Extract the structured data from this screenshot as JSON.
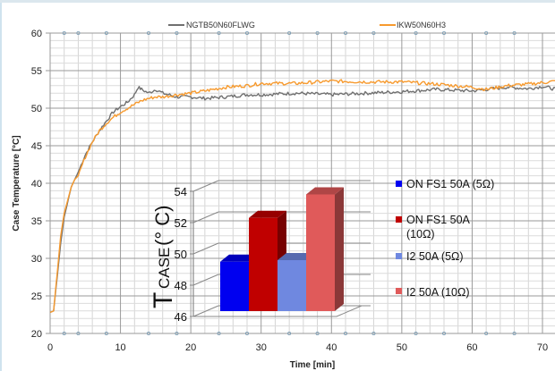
{
  "chart_data": [
    {
      "type": "line",
      "title": "",
      "xlabel": "Time [min]",
      "ylabel": "Case Temperature [°C]",
      "xlim": [
        0,
        72
      ],
      "ylim": [
        20,
        60
      ],
      "xticks": [
        0,
        10,
        20,
        30,
        40,
        50,
        60,
        70
      ],
      "yticks": [
        20,
        25,
        30,
        35,
        40,
        45,
        50,
        55,
        60
      ],
      "grid": true,
      "legend_position": "top",
      "series": [
        {
          "name": "NGTB50N60FLWG",
          "color": "#707070",
          "x": [
            0,
            0.5,
            1,
            1.5,
            2,
            3,
            4,
            5,
            6,
            7,
            8,
            9,
            10,
            11,
            12,
            12.5,
            13,
            14,
            15,
            16,
            18,
            20,
            22,
            25,
            28,
            30,
            35,
            40,
            45,
            50,
            55,
            60,
            62,
            65,
            68,
            70,
            72
          ],
          "y": [
            22.8,
            23.0,
            27.5,
            32.0,
            35.5,
            39.5,
            41.5,
            43.8,
            45.5,
            47.0,
            48.3,
            49.5,
            50.2,
            50.8,
            51.8,
            52.8,
            52.5,
            52.0,
            52.5,
            52.0,
            51.5,
            51.5,
            51.3,
            51.5,
            51.8,
            51.8,
            52.0,
            51.8,
            52.0,
            52.2,
            52.5,
            52.3,
            52.5,
            52.8,
            52.6,
            52.9,
            52.5
          ]
        },
        {
          "name": "IKW50N60H3",
          "color": "#f79a2e",
          "x": [
            0,
            0.5,
            1,
            1.5,
            2,
            3,
            3.5,
            4,
            5,
            6,
            7,
            8,
            9,
            10,
            11,
            12,
            13,
            14,
            15,
            16,
            18,
            20,
            22,
            25,
            28,
            30,
            35,
            40,
            45,
            50,
            55,
            60,
            62,
            65,
            68,
            70,
            72
          ],
          "y": [
            22.8,
            23.0,
            28.0,
            33.0,
            36.0,
            39.5,
            40.5,
            41.0,
            43.5,
            45.5,
            47.0,
            48.0,
            48.8,
            49.5,
            50.0,
            50.5,
            51.0,
            51.3,
            51.5,
            51.5,
            51.8,
            52.0,
            52.3,
            52.8,
            53.0,
            53.3,
            53.3,
            53.6,
            53.5,
            53.5,
            53.2,
            52.8,
            52.5,
            53.0,
            53.2,
            53.4,
            53.6
          ]
        }
      ]
    },
    {
      "type": "bar",
      "title": "",
      "ylabel": "TCASE (° C)",
      "ylim": [
        46,
        54
      ],
      "yticks": [
        46,
        48,
        50,
        52,
        54
      ],
      "grid": true,
      "legend_position": "right",
      "categories": [
        "ON FS1 50A (5Ω)",
        "ON FS1 50A (10Ω)",
        "I2 50A (5Ω)",
        "I2 50A (10Ω)"
      ],
      "values": [
        49.5,
        52.3,
        49.6,
        53.8
      ],
      "colors": [
        "#0000f0",
        "#c00000",
        "#6f88e0",
        "#e05a5a"
      ]
    }
  ],
  "ui": {
    "inset_legend_wrap": [
      "ON FS1 50A",
      "(10Ω)"
    ],
    "inset_ylabel_main": "T",
    "inset_ylabel_sub": "CASE",
    "inset_ylabel_unit": "(° C)"
  }
}
